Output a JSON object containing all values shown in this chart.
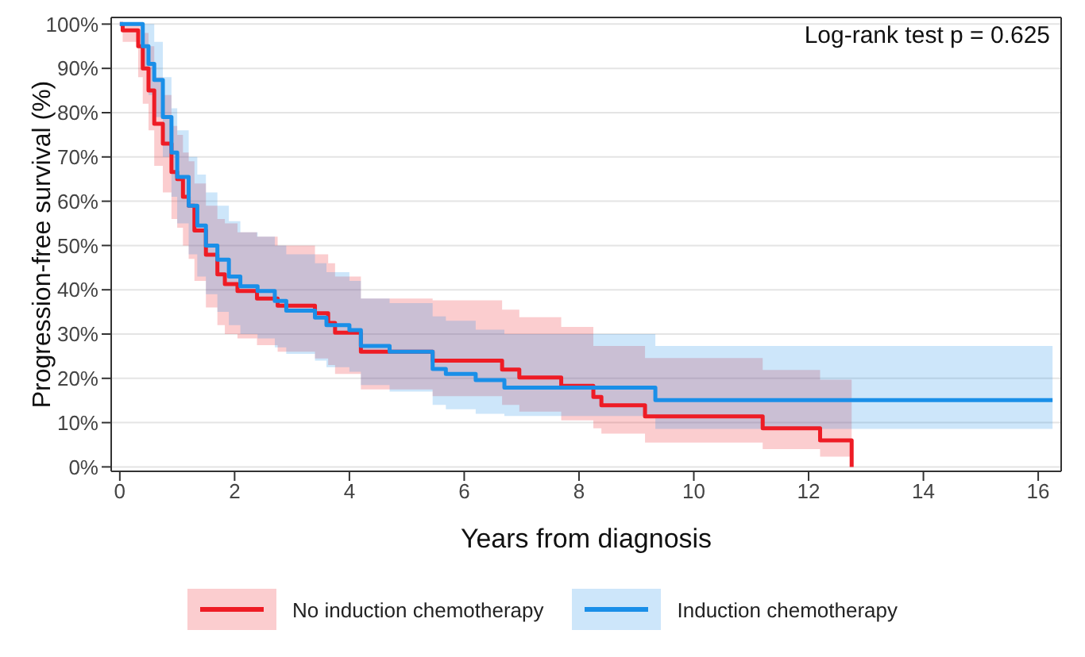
{
  "chart_data": {
    "type": "step",
    "xlabel": "Years from diagnosis",
    "ylabel": "Progression-free survival (%)",
    "annotations": [
      "Log-rank test p = 0.625"
    ],
    "xlim": [
      -0.15,
      16.4
    ],
    "xticks": [
      0,
      2,
      4,
      6,
      8,
      10,
      12,
      14,
      16
    ],
    "ylim": [
      -1,
      101.5
    ],
    "yticks": [
      {
        "value": 0,
        "label": "0%"
      },
      {
        "value": 10,
        "label": "10%"
      },
      {
        "value": 20,
        "label": "20%"
      },
      {
        "value": 30,
        "label": "30%"
      },
      {
        "value": 40,
        "label": "40%"
      },
      {
        "value": 50,
        "label": "50%"
      },
      {
        "value": 60,
        "label": "60%"
      },
      {
        "value": 70,
        "label": "70%"
      },
      {
        "value": 80,
        "label": "80%"
      },
      {
        "value": 90,
        "label": "90%"
      },
      {
        "value": 100,
        "label": "100%"
      }
    ],
    "grid": "y",
    "legend": "bottom",
    "series": [
      {
        "name": "No induction chemotherapy",
        "color": "#ee1c25",
        "x": [
          0,
          0.05,
          0.32,
          0.4,
          0.5,
          0.6,
          0.75,
          0.9,
          1.0,
          1.1,
          1.2,
          1.3,
          1.5,
          1.7,
          1.83,
          2.05,
          2.39,
          2.75,
          3.4,
          3.63,
          3.75,
          4.2,
          5.45,
          6.66,
          6.96,
          7.69,
          8.25,
          8.39,
          9.15,
          11.2,
          12.2,
          12.75
        ],
        "values": [
          100,
          98.6,
          95,
          90,
          85,
          77.5,
          73,
          66.6,
          65,
          61,
          59,
          53.4,
          47.9,
          43.5,
          41.3,
          39.7,
          38,
          36.4,
          34.7,
          32.5,
          30.3,
          26,
          24,
          22,
          20.2,
          18.3,
          15.8,
          13.9,
          11.4,
          8.7,
          6,
          0
        ],
        "lower": [
          100,
          96,
          88,
          82,
          76,
          68,
          62,
          56,
          54,
          50,
          47,
          42,
          36,
          32,
          30,
          29,
          27.5,
          26,
          24.5,
          23,
          21,
          17.5,
          16,
          14,
          12.5,
          10.5,
          8.7,
          7.5,
          5.5,
          4,
          2.3,
          2.3
        ],
        "upper": [
          100,
          100,
          100,
          98,
          95,
          88,
          84,
          77,
          75,
          71,
          69,
          64,
          59,
          56,
          55,
          53,
          52,
          50,
          48,
          46,
          43,
          38,
          37.6,
          35.5,
          33.8,
          31.6,
          27.3,
          27.3,
          24.6,
          21.9,
          19.7,
          19.7
        ]
      },
      {
        "name": "Induction chemotherapy",
        "color": "#1a8fe8",
        "x": [
          0,
          0.4,
          0.5,
          0.6,
          0.75,
          0.9,
          1.0,
          1.2,
          1.35,
          1.5,
          1.7,
          1.9,
          2.1,
          2.4,
          2.7,
          2.9,
          3.4,
          3.6,
          4.0,
          4.2,
          4.7,
          5.45,
          5.68,
          6.2,
          6.7,
          9.33,
          16.25
        ],
        "values": [
          100,
          95,
          91,
          87.4,
          79,
          71,
          65.5,
          59,
          54.5,
          50,
          46.8,
          43,
          40.8,
          39.7,
          37.5,
          35.3,
          33.7,
          32,
          30.9,
          27.3,
          26,
          22.1,
          21,
          19.6,
          17.9,
          15.1,
          15.1
        ],
        "lower": [
          100,
          90,
          84,
          79,
          70,
          61,
          55,
          48,
          43,
          39,
          35,
          32,
          30,
          29,
          27,
          25.5,
          24,
          22.5,
          21.5,
          18.5,
          17,
          14,
          13,
          12,
          11.5,
          8.6,
          8.6
        ],
        "upper": [
          100,
          100,
          100,
          96,
          88,
          81,
          76,
          70,
          66,
          62,
          59,
          55.5,
          53,
          52,
          50,
          48,
          46,
          44,
          42,
          38,
          37,
          34,
          33,
          31,
          30,
          27.3,
          27.3
        ]
      }
    ]
  }
}
